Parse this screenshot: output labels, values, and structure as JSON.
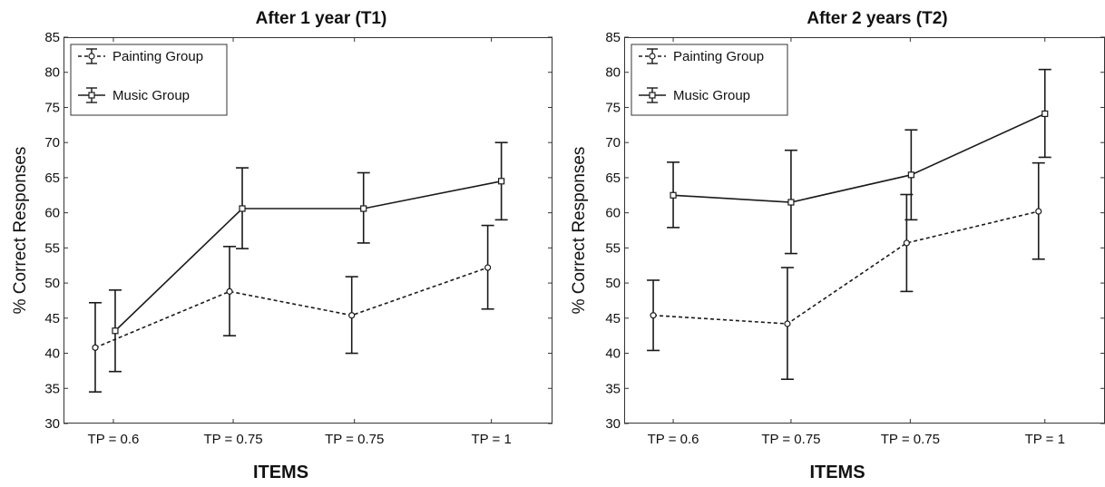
{
  "chart_data": [
    {
      "type": "line",
      "title": "After 1 year (T1)",
      "xlabel": "ITEMS",
      "ylabel": "% Correct Responses",
      "categories": [
        "TP = 0.6",
        "TP = 0.75",
        "TP = 0.75",
        "TP = 1"
      ],
      "ylim": [
        30,
        85
      ],
      "yticks": [
        30,
        35,
        40,
        45,
        50,
        55,
        60,
        65,
        70,
        75,
        80,
        85
      ],
      "grid": false,
      "legend": "top-left",
      "series": [
        {
          "name": "Painting Group",
          "style": "dashed",
          "values": [
            40.8,
            48.8,
            45.4,
            52.2
          ],
          "lower": [
            34.5,
            42.5,
            40.0,
            46.3
          ],
          "upper": [
            47.2,
            55.2,
            50.9,
            58.2
          ]
        },
        {
          "name": "Music Group",
          "style": "solid",
          "values": [
            43.2,
            60.6,
            60.6,
            64.5
          ],
          "lower": [
            37.4,
            54.9,
            55.7,
            59.0
          ],
          "upper": [
            49.0,
            66.4,
            65.7,
            70.0
          ]
        }
      ]
    },
    {
      "type": "line",
      "title": "After 2 years (T2)",
      "xlabel": "ITEMS",
      "ylabel": "% Correct Responses",
      "categories": [
        "TP = 0.6",
        "TP = 0.75",
        "TP = 0.75",
        "TP = 1"
      ],
      "ylim": [
        30,
        85
      ],
      "yticks": [
        30,
        35,
        40,
        45,
        50,
        55,
        60,
        65,
        70,
        75,
        80,
        85
      ],
      "grid": false,
      "legend": "top-left",
      "series": [
        {
          "name": "Painting Group",
          "style": "dashed",
          "values": [
            45.4,
            44.2,
            55.7,
            60.2
          ],
          "lower": [
            40.4,
            36.3,
            48.8,
            53.4
          ],
          "upper": [
            50.4,
            52.2,
            62.6,
            67.1
          ]
        },
        {
          "name": "Music Group",
          "style": "solid",
          "values": [
            62.5,
            61.5,
            65.4,
            74.1
          ],
          "lower": [
            57.9,
            54.2,
            59.0,
            67.9
          ],
          "upper": [
            67.2,
            68.9,
            71.8,
            80.4
          ]
        }
      ]
    }
  ],
  "colors": {
    "line": "#1a1a1a",
    "frame": "#333333",
    "marker_fill": "#ffffff"
  }
}
